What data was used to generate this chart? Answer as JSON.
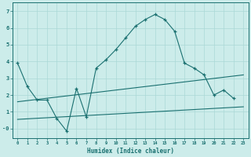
{
  "xlabel": "Humidex (Indice chaleur)",
  "background_color": "#ccecea",
  "grid_color": "#aad8d6",
  "line_color": "#1a7070",
  "xlim_min": -0.5,
  "xlim_max": 23.5,
  "ylim_min": -0.55,
  "ylim_max": 7.5,
  "line1_x": [
    0,
    1,
    2,
    3,
    4,
    5,
    6,
    7,
    8,
    9,
    10,
    11,
    12,
    13,
    14,
    15,
    16,
    17,
    18,
    19,
    20,
    21,
    22
  ],
  "line1_y": [
    3.9,
    2.5,
    1.7,
    1.7,
    0.6,
    -0.15,
    2.4,
    0.7,
    3.6,
    4.1,
    4.7,
    5.4,
    6.1,
    6.5,
    6.8,
    6.5,
    5.8,
    3.9,
    3.6,
    3.2,
    2.0,
    2.3,
    1.8
  ],
  "line2_x": [
    0,
    23
  ],
  "line2_y": [
    1.6,
    3.2
  ],
  "line3_x": [
    0,
    23
  ],
  "line3_y": [
    0.55,
    1.3
  ],
  "ytick_values": [
    0,
    1,
    2,
    3,
    4,
    5,
    6,
    7
  ],
  "ytick_labels": [
    "-0",
    "1",
    "2",
    "3",
    "4",
    "5",
    "6",
    "7"
  ]
}
